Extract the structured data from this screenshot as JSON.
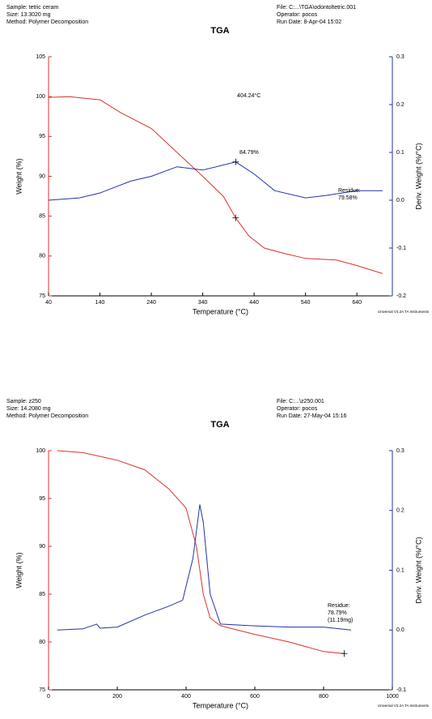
{
  "chart_data": [
    {
      "type": "line",
      "title": "TGA",
      "info_left": [
        "Sample: tetric ceram",
        "Size:  13.3020 mg",
        "Method: Polymer Decomposition"
      ],
      "info_right": [
        "File: C:...\\TGA\\odontoltetric.001",
        "Operator: pocos",
        "Run Date: 8-Apr-04 15:02"
      ],
      "xlabel": "Temperature (°C)",
      "ylabel": "Weight (%)",
      "y2label": "Deriv. Weight (%/°C)",
      "footer": "Universal V3.2A TA Instruments",
      "xlim": [
        40,
        709
      ],
      "xticks": [
        40,
        140,
        240,
        340,
        440,
        540,
        640
      ],
      "ylim": [
        75,
        105
      ],
      "yticks": [
        75,
        80,
        85,
        90,
        95,
        100,
        105
      ],
      "y2lim": [
        -0.2,
        0.3
      ],
      "y2ticks": [
        -0.2,
        -0.1,
        {
          "value": 0,
          "label": "0.0"
        },
        0.1,
        0.2,
        0.3
      ],
      "series": [
        {
          "color": "#e0312c",
          "axis": "y",
          "x": [
            40,
            80,
            140,
            180,
            240,
            290,
            340,
            380,
            404,
            430,
            460,
            500,
            540,
            600,
            640,
            690
          ],
          "values": [
            99.9,
            100,
            99.6,
            98,
            96,
            93,
            90,
            87.5,
            84.79,
            82.5,
            81,
            80.3,
            79.7,
            79.5,
            78.8,
            77.8
          ]
        },
        {
          "color": "#2233aa",
          "axis": "y2",
          "x": [
            40,
            100,
            140,
            200,
            240,
            290,
            340,
            404.24,
            440,
            480,
            540,
            580,
            640,
            690
          ],
          "values": [
            0,
            0.005,
            0.015,
            0.04,
            0.05,
            0.07,
            0.063,
            0.08,
            0.055,
            0.02,
            0.005,
            0.01,
            0.02,
            0.02
          ]
        }
      ],
      "annotations": [
        [
          "404.24°C"
        ],
        [
          "84.79%"
        ],
        [
          "Residue:",
          "79.58%"
        ]
      ]
    },
    {
      "type": "line",
      "title": "TGA",
      "info_left": [
        "Sample: z250",
        "Size:  14.2080 mg",
        "Method: Polymer Decomposition"
      ],
      "info_right": [
        "File: C:...\\z250.001",
        "Operator: pocos",
        "Run Date: 27-May-04 15:16"
      ],
      "xlabel": "Temperature (°C)",
      "ylabel": "Weight (%)",
      "y2label": "Deriv. Weight (%/°C)",
      "footer": "Universal V3.2A TA Instruments",
      "xlim": [
        0,
        1000
      ],
      "xticks": [
        0,
        200,
        400,
        600,
        800,
        1000
      ],
      "ylim": [
        75,
        100
      ],
      "yticks": [
        75,
        80,
        85,
        90,
        95,
        100
      ],
      "y2lim": [
        -0.1,
        0.3
      ],
      "y2ticks": [
        -0.1,
        {
          "value": 0,
          "label": "0.0"
        },
        0.1,
        0.2,
        0.3
      ],
      "series": [
        {
          "color": "#e0312c",
          "axis": "y",
          "x": [
            25,
            100,
            200,
            280,
            350,
            400,
            430,
            450,
            470,
            500,
            600,
            700,
            800,
            860
          ],
          "values": [
            100,
            99.8,
            99,
            98,
            96,
            94,
            90,
            85,
            82.5,
            81.7,
            80.8,
            80,
            79,
            78.79
          ]
        },
        {
          "color": "#2233aa",
          "axis": "y2",
          "x": [
            25,
            100,
            140,
            150,
            200,
            280,
            350,
            390,
            420,
            440,
            450,
            470,
            500,
            600,
            700,
            800,
            880
          ],
          "values": [
            0,
            0.002,
            0.01,
            0.003,
            0.005,
            0.025,
            0.04,
            0.05,
            0.12,
            0.21,
            0.18,
            0.06,
            0.01,
            0.007,
            0.005,
            0.005,
            0
          ]
        }
      ],
      "annotations": [
        [
          "Residue:",
          "78.79%",
          "(11.19mg)"
        ]
      ]
    }
  ]
}
